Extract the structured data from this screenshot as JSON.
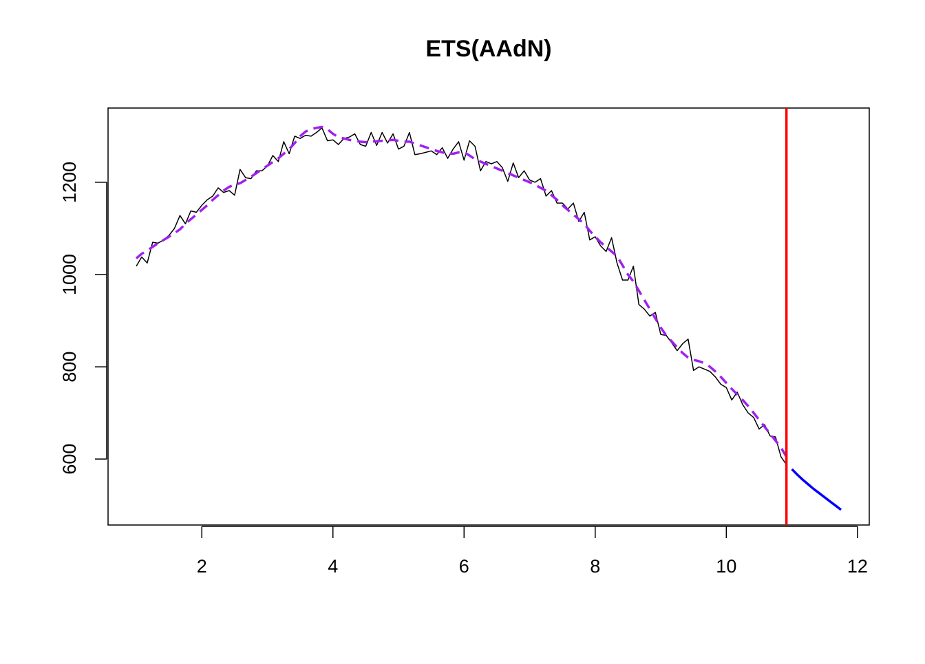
{
  "chart_data": {
    "type": "line",
    "title": "ETS(AAdN)",
    "xlim": [
      0.57,
      12.18
    ],
    "ylim": [
      457,
      1361
    ],
    "xticks": [
      2,
      4,
      6,
      8,
      10,
      12
    ],
    "yticks": [
      600,
      800,
      1000,
      1200
    ],
    "grid": false,
    "x": [
      1,
      1.083,
      1.167,
      1.25,
      1.333,
      1.417,
      1.5,
      1.583,
      1.667,
      1.75,
      1.833,
      1.917,
      2,
      2.083,
      2.167,
      2.25,
      2.333,
      2.417,
      2.5,
      2.583,
      2.667,
      2.75,
      2.833,
      2.917,
      3,
      3.083,
      3.167,
      3.25,
      3.333,
      3.417,
      3.5,
      3.583,
      3.667,
      3.75,
      3.833,
      3.917,
      4,
      4.083,
      4.167,
      4.25,
      4.333,
      4.417,
      4.5,
      4.583,
      4.667,
      4.75,
      4.833,
      4.917,
      5,
      5.083,
      5.167,
      5.25,
      5.333,
      5.417,
      5.5,
      5.583,
      5.667,
      5.75,
      5.833,
      5.917,
      6,
      6.083,
      6.167,
      6.25,
      6.333,
      6.417,
      6.5,
      6.583,
      6.667,
      6.75,
      6.833,
      6.917,
      7,
      7.083,
      7.167,
      7.25,
      7.333,
      7.417,
      7.5,
      7.583,
      7.667,
      7.75,
      7.833,
      7.917,
      8,
      8.083,
      8.167,
      8.25,
      8.333,
      8.417,
      8.5,
      8.583,
      8.667,
      8.75,
      8.833,
      8.917,
      9,
      9.083,
      9.167,
      9.25,
      9.333,
      9.417,
      9.5,
      9.583,
      9.667,
      9.75,
      9.833,
      9.917,
      10,
      10.083,
      10.167,
      10.25,
      10.333,
      10.417,
      10.5,
      10.583,
      10.667,
      10.75,
      10.833,
      10.917
    ],
    "series": [
      {
        "color": "#000000",
        "width": 1.5,
        "dashed": false,
        "values": [
          1018,
          1038,
          1025,
          1070,
          1068,
          1075,
          1085,
          1100,
          1128,
          1110,
          1138,
          1135,
          1150,
          1162,
          1170,
          1188,
          1178,
          1182,
          1172,
          1228,
          1210,
          1208,
          1225,
          1225,
          1235,
          1258,
          1245,
          1288,
          1262,
          1300,
          1295,
          1302,
          1300,
          1308,
          1318,
          1290,
          1292,
          1282,
          1295,
          1298,
          1305,
          1282,
          1278,
          1308,
          1280,
          1308,
          1285,
          1305,
          1272,
          1278,
          1308,
          1260,
          1262,
          1265,
          1268,
          1260,
          1275,
          1252,
          1272,
          1288,
          1248,
          1290,
          1278,
          1225,
          1245,
          1240,
          1245,
          1232,
          1202,
          1242,
          1210,
          1225,
          1205,
          1200,
          1208,
          1170,
          1182,
          1155,
          1155,
          1142,
          1155,
          1115,
          1135,
          1075,
          1082,
          1062,
          1050,
          1080,
          1025,
          988,
          988,
          1018,
          935,
          925,
          910,
          918,
          870,
          868,
          852,
          835,
          850,
          860,
          792,
          800,
          795,
          790,
          778,
          762,
          755,
          728,
          745,
          718,
          700,
          690,
          665,
          675,
          650,
          648,
          605,
          588
        ]
      },
      {
        "color": "#a020f0",
        "width": 3.5,
        "dashed": true,
        "values": [
          1035,
          1045,
          1052,
          1060,
          1068,
          1075,
          1082,
          1090,
          1098,
          1110,
          1120,
          1130,
          1140,
          1150,
          1162,
          1172,
          1182,
          1190,
          1195,
          1198,
          1205,
          1212,
          1220,
          1228,
          1236,
          1244,
          1252,
          1262,
          1272,
          1285,
          1300,
          1310,
          1315,
          1318,
          1320,
          1315,
          1305,
          1298,
          1295,
          1292,
          1290,
          1288,
          1287,
          1288,
          1289,
          1290,
          1291,
          1292,
          1290,
          1288,
          1288,
          1284,
          1280,
          1276,
          1272,
          1268,
          1265,
          1262,
          1262,
          1265,
          1265,
          1258,
          1250,
          1245,
          1240,
          1235,
          1230,
          1225,
          1220,
          1215,
          1210,
          1205,
          1200,
          1195,
          1188,
          1182,
          1172,
          1162,
          1150,
          1140,
          1130,
          1120,
          1110,
          1095,
          1082,
          1070,
          1060,
          1050,
          1040,
          1020,
          1000,
          985,
          965,
          945,
          925,
          905,
          885,
          868,
          855,
          842,
          830,
          820,
          815,
          812,
          808,
          800,
          790,
          778,
          765,
          752,
          740,
          728,
          715,
          700,
          685,
          670,
          655,
          640,
          625,
          605
        ]
      },
      {
        "color": "#0000ff",
        "width": 3.5,
        "dashed": false,
        "x": [
          11,
          11.083,
          11.167,
          11.25,
          11.333,
          11.417,
          11.5,
          11.583,
          11.667,
          11.75
        ],
        "values": [
          578,
          566,
          555,
          545,
          535,
          526,
          517,
          508,
          499,
          490
        ]
      }
    ],
    "vline": {
      "x": 10.917,
      "color": "#ff0000"
    }
  }
}
